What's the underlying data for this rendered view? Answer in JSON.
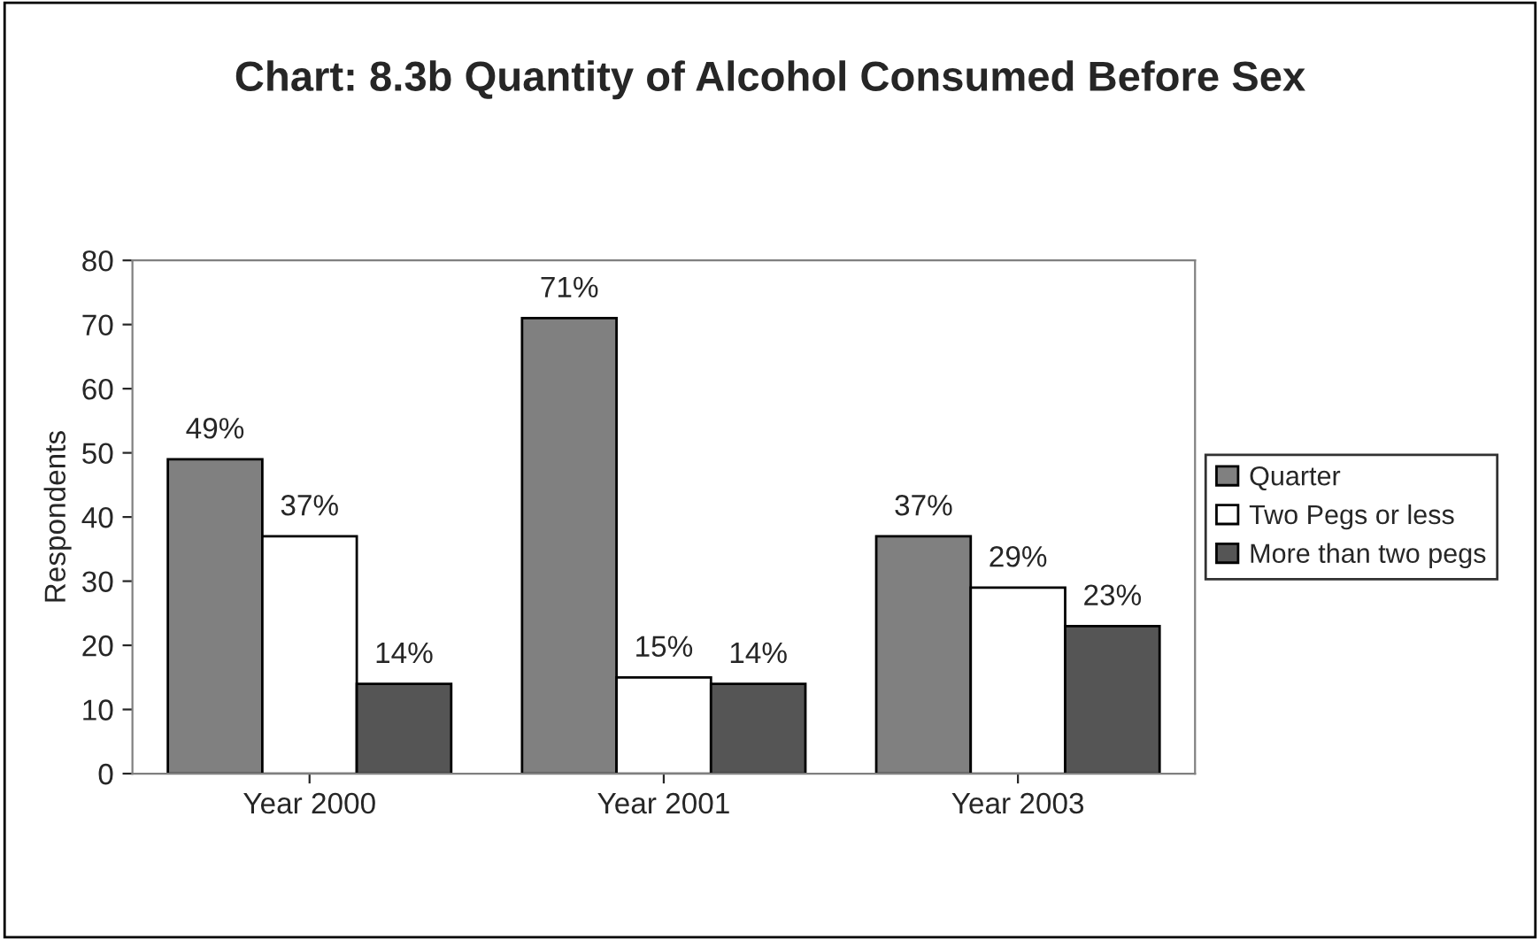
{
  "chart_data": {
    "type": "bar",
    "title": "Chart: 8.3b Quantity of Alcohol Consumed Before Sex",
    "ylabel": "Respondents",
    "categories": [
      "Year 2000",
      "Year 2001",
      "Year 2003"
    ],
    "series": [
      {
        "name": "Quarter",
        "color": "#808080",
        "values": [
          49,
          71,
          37
        ],
        "value_labels": [
          "49%",
          "71%",
          "37%"
        ]
      },
      {
        "name": "Two Pegs or less",
        "color": "#ffffff",
        "values": [
          37,
          15,
          29
        ],
        "value_labels": [
          "37%",
          "15%",
          "29%"
        ]
      },
      {
        "name": "More than two pegs",
        "color": "#555555",
        "values": [
          14,
          14,
          23
        ],
        "value_labels": [
          "14%",
          "14%",
          "23%"
        ]
      }
    ],
    "ylim": [
      0,
      80
    ],
    "yticks": [
      0,
      10,
      20,
      30,
      40,
      50,
      60,
      70,
      80
    ],
    "grid": false,
    "legend": "right"
  }
}
